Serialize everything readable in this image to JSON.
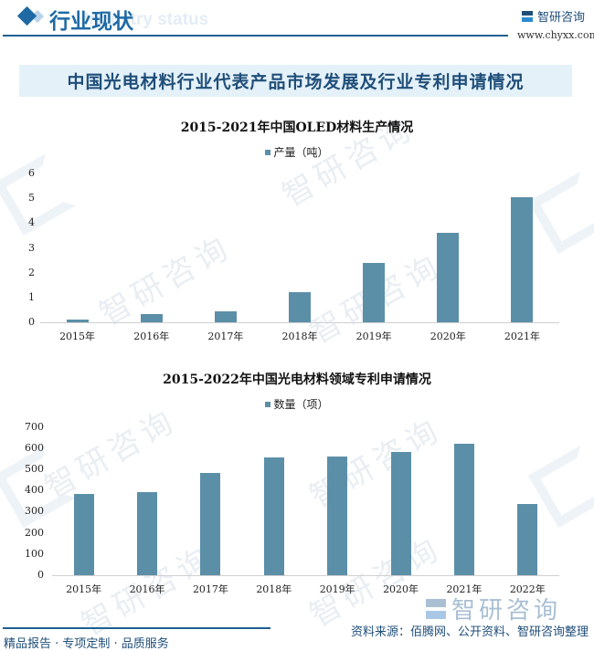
{
  "header": {
    "title": "行业现状",
    "subtitle_watermark": "Industry status",
    "brand_name": "智研咨询",
    "brand_url": "www.chyxx.com"
  },
  "banner": {
    "title": "中国光电材料行业代表产品市场发展及行业专利申请情况"
  },
  "colors": {
    "bar": "#5b8fa8",
    "brand_dark": "#1f4e79",
    "brand_accent": "#1f6aa5",
    "banner_bg": "#e4f1f9"
  },
  "chart_data": [
    {
      "type": "bar",
      "title": "2015-2021年中国OLED材料生产情况",
      "legend": [
        "产量（吨）"
      ],
      "categories": [
        "2015年",
        "2016年",
        "2017年",
        "2018年",
        "2019年",
        "2020年",
        "2021年"
      ],
      "series": [
        {
          "name": "产量（吨）",
          "values": [
            0.11,
            0.34,
            0.45,
            1.22,
            2.39,
            3.61,
            5.05
          ]
        }
      ],
      "yticks": [
        "0",
        "1",
        "2",
        "3",
        "4",
        "5",
        "6"
      ],
      "ylim": [
        0,
        6
      ],
      "xlabel": "",
      "ylabel": "",
      "grid": false,
      "legend_position": "top"
    },
    {
      "type": "bar",
      "title": "2015-2022年中国光电材料领域专利申请情况",
      "legend": [
        "数量（项）"
      ],
      "categories": [
        "2015年",
        "2016年",
        "2017年",
        "2018年",
        "2019年",
        "2020年",
        "2021年",
        "2022年"
      ],
      "series": [
        {
          "name": "数量（项）",
          "values": [
            384,
            392,
            484,
            556,
            562,
            582,
            621,
            336
          ]
        }
      ],
      "yticks": [
        "0",
        "100",
        "200",
        "300",
        "400",
        "500",
        "600",
        "700"
      ],
      "ylim": [
        0,
        700
      ],
      "xlabel": "",
      "ylabel": "",
      "grid": false,
      "legend_position": "top"
    }
  ],
  "footer": {
    "tagline": "精品报告 · 专项定制 · 品质服务",
    "source": "资料来源：佰腾网、公开资料、智研咨询整理",
    "brand_watermark": "智研咨询"
  }
}
